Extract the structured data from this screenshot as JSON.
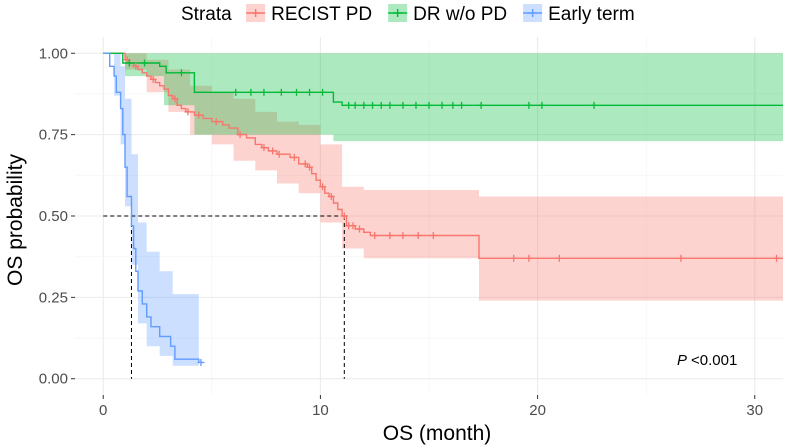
{
  "chart_data": {
    "type": "line",
    "subtype": "kaplan-meier",
    "title": "",
    "xlabel": "OS (month)",
    "ylabel": "OS probability",
    "xlim": [
      -1.3,
      31.3
    ],
    "ylim": [
      -0.05,
      1.05
    ],
    "x_ticks": [
      0,
      10,
      20,
      30
    ],
    "x_tick_labels": [
      "0",
      "10",
      "20",
      "30"
    ],
    "y_ticks": [
      0,
      0.25,
      0.5,
      0.75,
      1.0
    ],
    "y_tick_labels": [
      "0.00",
      "0.25",
      "0.50",
      "0.75",
      "1.00"
    ],
    "grid": true,
    "legend": {
      "title": "Strata",
      "position": "top"
    },
    "annotation": {
      "italic": "P",
      "text": "<0.001",
      "position": "bottom-right"
    },
    "median_lines": [
      {
        "series": "Early term",
        "median_x": 1.3,
        "level": 0.5
      },
      {
        "series": "RECIST PD",
        "median_x": 11.1,
        "level": 0.5
      }
    ],
    "series": [
      {
        "name": "RECIST PD",
        "color": "#f8766d",
        "fill": "#f8766d",
        "steps": [
          [
            0,
            1.0
          ],
          [
            0.8,
            1.0
          ],
          [
            1.0,
            0.98
          ],
          [
            1.2,
            0.97
          ],
          [
            1.4,
            0.96
          ],
          [
            1.6,
            0.95
          ],
          [
            1.8,
            0.94
          ],
          [
            2.0,
            0.93
          ],
          [
            2.2,
            0.92
          ],
          [
            2.4,
            0.91
          ],
          [
            2.6,
            0.9
          ],
          [
            2.8,
            0.89
          ],
          [
            3.0,
            0.87
          ],
          [
            3.2,
            0.86
          ],
          [
            3.4,
            0.84
          ],
          [
            3.6,
            0.83
          ],
          [
            3.8,
            0.82
          ],
          [
            4.2,
            0.81
          ],
          [
            4.6,
            0.8
          ],
          [
            5.0,
            0.79
          ],
          [
            5.5,
            0.78
          ],
          [
            5.8,
            0.77
          ],
          [
            6.2,
            0.75
          ],
          [
            6.6,
            0.74
          ],
          [
            7.0,
            0.72
          ],
          [
            7.3,
            0.71
          ],
          [
            7.6,
            0.7
          ],
          [
            8.0,
            0.69
          ],
          [
            8.6,
            0.68
          ],
          [
            9.0,
            0.66
          ],
          [
            9.4,
            0.65
          ],
          [
            9.6,
            0.63
          ],
          [
            9.8,
            0.61
          ],
          [
            10.0,
            0.59
          ],
          [
            10.2,
            0.57
          ],
          [
            10.4,
            0.56
          ],
          [
            10.6,
            0.54
          ],
          [
            10.8,
            0.52
          ],
          [
            11.0,
            0.5
          ],
          [
            11.2,
            0.47
          ],
          [
            11.6,
            0.46
          ],
          [
            12.0,
            0.45
          ],
          [
            12.3,
            0.44
          ],
          [
            17.3,
            0.37
          ],
          [
            31.3,
            0.37
          ]
        ],
        "ci_upper": [
          [
            0,
            1.0
          ],
          [
            1.0,
            1.0
          ],
          [
            2.0,
            0.98
          ],
          [
            3.0,
            0.95
          ],
          [
            4.0,
            0.9
          ],
          [
            5.0,
            0.88
          ],
          [
            6.0,
            0.86
          ],
          [
            7.0,
            0.82
          ],
          [
            8.0,
            0.79
          ],
          [
            9.0,
            0.78
          ],
          [
            10.0,
            0.72
          ],
          [
            11.0,
            0.59
          ],
          [
            12.0,
            0.58
          ],
          [
            17.3,
            0.56
          ],
          [
            31.3,
            0.56
          ]
        ],
        "ci_lower": [
          [
            0,
            1.0
          ],
          [
            1.0,
            0.95
          ],
          [
            2.0,
            0.88
          ],
          [
            3.0,
            0.82
          ],
          [
            4.0,
            0.75
          ],
          [
            5.0,
            0.72
          ],
          [
            6.0,
            0.67
          ],
          [
            7.0,
            0.64
          ],
          [
            8.0,
            0.6
          ],
          [
            9.0,
            0.57
          ],
          [
            10.0,
            0.48
          ],
          [
            11.0,
            0.4
          ],
          [
            12.0,
            0.37
          ],
          [
            17.3,
            0.24
          ],
          [
            31.3,
            0.24
          ]
        ],
        "censor_times": [
          1.1,
          1.5,
          2.3,
          3.3,
          3.9,
          4.4,
          5.2,
          6.3,
          7.4,
          7.8,
          8.1,
          8.8,
          9.3,
          9.5,
          10.1,
          10.5,
          11.1,
          11.3,
          11.5,
          11.8,
          12.5,
          13.2,
          13.8,
          14.5,
          15.2,
          18.9,
          19.6,
          21.0,
          26.6,
          31.0
        ]
      },
      {
        "name": "DR w/o PD",
        "color": "#00ba38",
        "fill": "#00ba38",
        "steps": [
          [
            0,
            1.0
          ],
          [
            0.8,
            1.0
          ],
          [
            0.9,
            0.97
          ],
          [
            2.6,
            0.96
          ],
          [
            2.9,
            0.94
          ],
          [
            4.2,
            0.88
          ],
          [
            10.6,
            0.85
          ],
          [
            11.0,
            0.84
          ],
          [
            31.3,
            0.84
          ]
        ],
        "ci_upper": [
          [
            0,
            1.0
          ],
          [
            31.3,
            1.0
          ]
        ],
        "ci_lower": [
          [
            0,
            1.0
          ],
          [
            1.0,
            0.93
          ],
          [
            2.8,
            0.84
          ],
          [
            4.2,
            0.75
          ],
          [
            10.6,
            0.73
          ],
          [
            31.3,
            0.73
          ]
        ],
        "censor_times": [
          1.2,
          1.9,
          3.6,
          6.1,
          6.8,
          7.4,
          8.2,
          8.9,
          9.5,
          10.1,
          11.3,
          11.6,
          12.0,
          12.4,
          12.8,
          13.2,
          13.8,
          14.4,
          15.0,
          15.6,
          16.1,
          16.5,
          17.4,
          19.6,
          20.2,
          22.6
        ]
      },
      {
        "name": "Early term",
        "color": "#619cff",
        "fill": "#619cff",
        "steps": [
          [
            0,
            1.0
          ],
          [
            0.3,
            0.96
          ],
          [
            0.5,
            0.93
          ],
          [
            0.6,
            0.88
          ],
          [
            0.8,
            0.83
          ],
          [
            0.9,
            0.75
          ],
          [
            1.0,
            0.65
          ],
          [
            1.1,
            0.56
          ],
          [
            1.3,
            0.47
          ],
          [
            1.4,
            0.4
          ],
          [
            1.5,
            0.33
          ],
          [
            1.6,
            0.27
          ],
          [
            1.8,
            0.23
          ],
          [
            2.0,
            0.19
          ],
          [
            2.2,
            0.16
          ],
          [
            2.6,
            0.13
          ],
          [
            3.1,
            0.1
          ],
          [
            3.3,
            0.06
          ],
          [
            4.4,
            0.05
          ]
        ],
        "ci_upper": [
          [
            0,
            1.0
          ],
          [
            0.5,
            1.0
          ],
          [
            0.8,
            0.96
          ],
          [
            1.0,
            0.86
          ],
          [
            1.3,
            0.69
          ],
          [
            1.6,
            0.48
          ],
          [
            2.0,
            0.39
          ],
          [
            2.6,
            0.33
          ],
          [
            3.2,
            0.26
          ],
          [
            4.4,
            0.24
          ]
        ],
        "ci_lower": [
          [
            0,
            1.0
          ],
          [
            0.5,
            0.87
          ],
          [
            0.8,
            0.72
          ],
          [
            1.0,
            0.53
          ],
          [
            1.3,
            0.35
          ],
          [
            1.6,
            0.17
          ],
          [
            2.0,
            0.1
          ],
          [
            2.6,
            0.07
          ],
          [
            3.2,
            0.04
          ],
          [
            4.4,
            0.02
          ]
        ],
        "censor_times": [
          4.5
        ]
      }
    ]
  }
}
